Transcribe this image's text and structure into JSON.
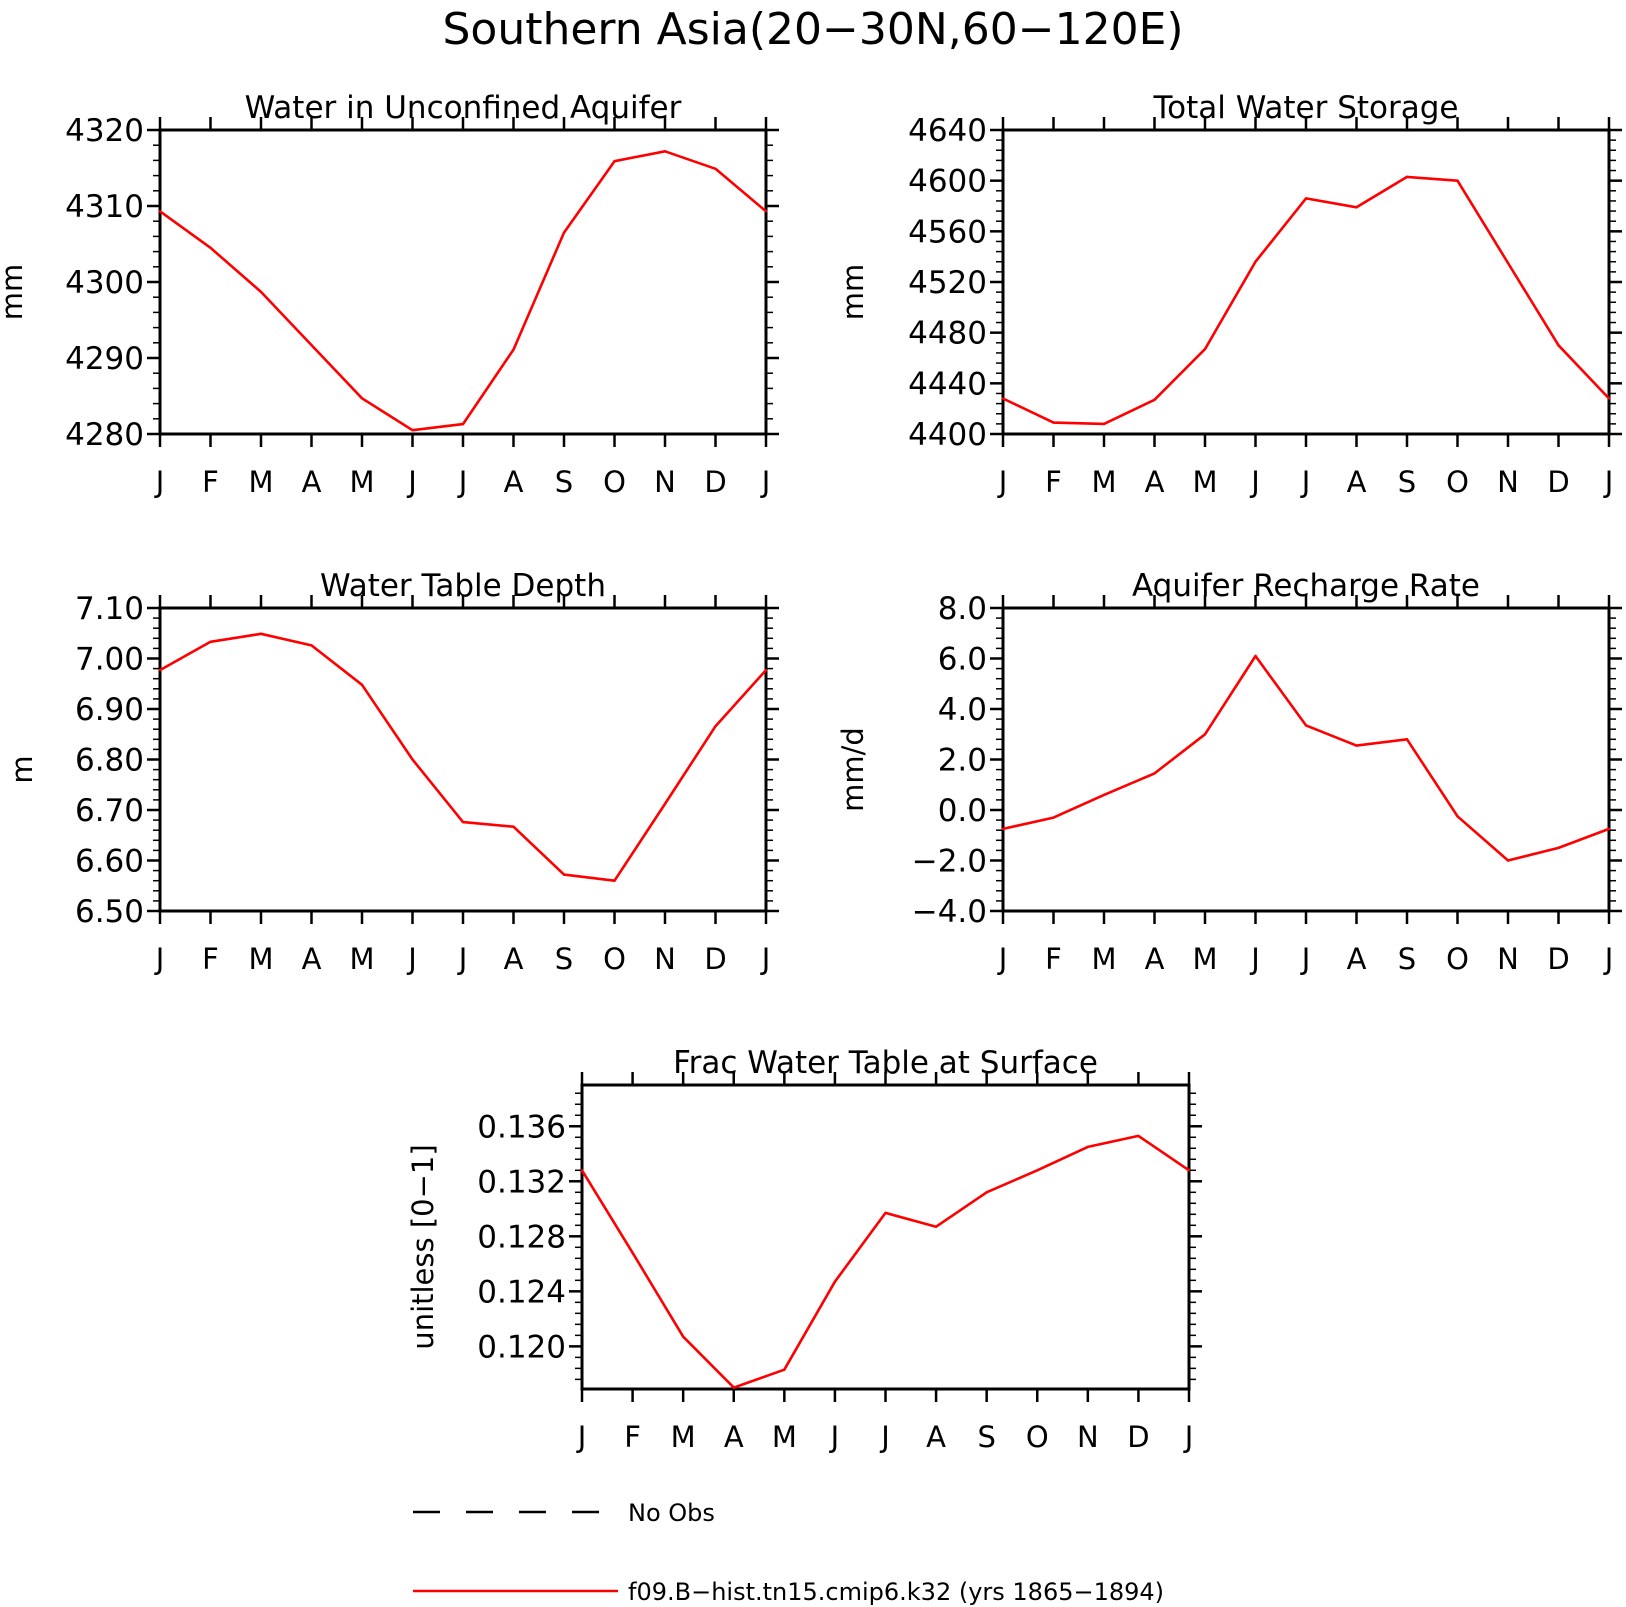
{
  "figure": {
    "title": "Southern Asia(20−30N,60−120E)"
  },
  "chart_data": [
    {
      "type": "line",
      "title": "Water in Unconfined Aquifer",
      "ylabel": "mm",
      "xlabel": "",
      "x": [
        "J",
        "F",
        "M",
        "A",
        "M",
        "J",
        "J",
        "A",
        "S",
        "O",
        "N",
        "D",
        "J"
      ],
      "ylim": [
        4280,
        4320
      ],
      "yticks": [
        4280,
        4290,
        4300,
        4310,
        4320
      ],
      "yticklabels": [
        "4280",
        "4290",
        "4300",
        "4310",
        "4320"
      ],
      "minor_step": 2,
      "series": [
        {
          "color": "#ff0000",
          "values": [
            4309.3,
            4304.5,
            4298.7,
            4291.7,
            4284.7,
            4280.5,
            4281.3,
            4291.1,
            4306.5,
            4315.9,
            4317.2,
            4314.9,
            4309.3
          ]
        }
      ]
    },
    {
      "type": "line",
      "title": "Total Water Storage",
      "ylabel": "mm",
      "xlabel": "",
      "x": [
        "J",
        "F",
        "M",
        "A",
        "M",
        "J",
        "J",
        "A",
        "S",
        "O",
        "N",
        "D",
        "J"
      ],
      "ylim": [
        4400,
        4640
      ],
      "yticks": [
        4400,
        4440,
        4480,
        4520,
        4560,
        4600,
        4640
      ],
      "yticklabels": [
        "4400",
        "4440",
        "4480",
        "4520",
        "4560",
        "4600",
        "4640"
      ],
      "minor_step": 8,
      "series": [
        {
          "color": "#ff0000",
          "values": [
            4428,
            4409,
            4408,
            4427,
            4467,
            4536,
            4586,
            4579,
            4603,
            4600,
            4535,
            4470,
            4428
          ]
        }
      ]
    },
    {
      "type": "line",
      "title": "Water Table Depth",
      "ylabel": "m",
      "xlabel": "",
      "x": [
        "J",
        "F",
        "M",
        "A",
        "M",
        "J",
        "J",
        "A",
        "S",
        "O",
        "N",
        "D",
        "J"
      ],
      "ylim": [
        6.5,
        7.1
      ],
      "yticks": [
        6.5,
        6.6,
        6.7,
        6.8,
        6.9,
        7.0,
        7.1
      ],
      "yticklabels": [
        "6.50",
        "6.60",
        "6.70",
        "6.80",
        "6.90",
        "7.00",
        "7.10"
      ],
      "minor_step": 0.02,
      "series": [
        {
          "color": "#ff0000",
          "values": [
            6.977,
            7.033,
            7.049,
            7.026,
            6.948,
            6.8,
            6.676,
            6.667,
            6.572,
            6.56,
            6.712,
            6.866,
            6.977
          ]
        }
      ]
    },
    {
      "type": "line",
      "title": "Aquifer Recharge Rate",
      "ylabel": "mm/d",
      "xlabel": "",
      "x": [
        "J",
        "F",
        "M",
        "A",
        "M",
        "J",
        "J",
        "A",
        "S",
        "O",
        "N",
        "D",
        "J"
      ],
      "ylim": [
        -4.0,
        8.0
      ],
      "yticks": [
        -4.0,
        -2.0,
        0.0,
        2.0,
        4.0,
        6.0,
        8.0
      ],
      "yticklabels": [
        "−4.0",
        "−2.0",
        "0.0",
        "2.0",
        "4.0",
        "6.0",
        "8.0"
      ],
      "minor_step": 0.4,
      "series": [
        {
          "color": "#ff0000",
          "values": [
            -0.75,
            -0.3,
            0.6,
            1.45,
            3.0,
            6.1,
            3.35,
            2.55,
            2.8,
            -0.25,
            -2.0,
            -1.5,
            -0.75
          ]
        }
      ]
    },
    {
      "type": "line",
      "title": "Frac Water Table at Surface",
      "ylabel": "unitless [0−1]",
      "xlabel": "",
      "x": [
        "J",
        "F",
        "M",
        "A",
        "M",
        "J",
        "J",
        "A",
        "S",
        "O",
        "N",
        "D",
        "J"
      ],
      "ylim": [
        0.1169,
        0.139
      ],
      "yticks": [
        0.12,
        0.124,
        0.128,
        0.132,
        0.136
      ],
      "yticklabels": [
        "0.120",
        "0.124",
        "0.128",
        "0.132",
        "0.136"
      ],
      "minor_step": 0.0008,
      "series": [
        {
          "color": "#ff0000",
          "values": [
            0.1328,
            0.1268,
            0.1207,
            0.117,
            0.1183,
            0.1247,
            0.1297,
            0.1287,
            0.1312,
            0.1328,
            0.1345,
            0.1353,
            0.1328
          ]
        }
      ]
    }
  ],
  "legend": {
    "items": [
      {
        "label": "No Obs",
        "style": "dashed",
        "color": "#000000"
      },
      {
        "label": "f09.B−hist.tn15.cmip6.k32 (yrs 1865−1894)",
        "style": "solid",
        "color": "#ff0000"
      }
    ]
  }
}
